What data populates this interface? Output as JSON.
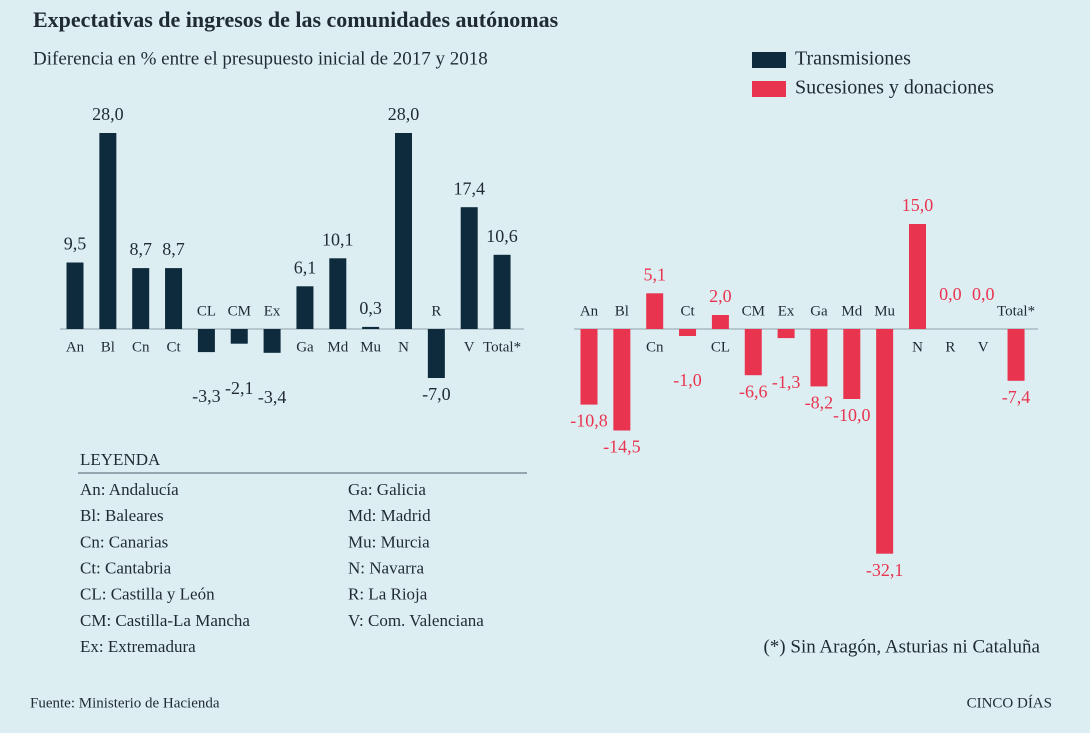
{
  "title": "Expectativas de ingresos de las comunidades autónomas",
  "subtitle": "Diferencia en % entre el presupuesto inicial de 2017 y 2018",
  "chart_data": [
    {
      "type": "bar",
      "categories": [
        "An",
        "Bl",
        "Cn",
        "Ct",
        "CL",
        "CM",
        "Ex",
        "Ga",
        "Md",
        "Mu",
        "N",
        "R",
        "V",
        "Total*"
      ],
      "series": [
        {
          "name": "Transmisiones",
          "color": "#0e2a3d",
          "values": [
            9.5,
            28.0,
            8.7,
            8.7,
            -3.3,
            -2.1,
            -3.4,
            6.1,
            10.1,
            0.3,
            28.0,
            -7.0,
            17.4,
            10.6
          ],
          "value_labels": [
            "9,5",
            "28,0",
            "8,7",
            "8,7",
            "-3,3",
            "-2,1",
            "-3,4",
            "6,1",
            "10,1",
            "0,3",
            "28,0",
            "-7,0",
            "17,4",
            "10,6"
          ]
        }
      ],
      "ylim": [
        -35,
        30
      ]
    },
    {
      "type": "bar",
      "categories": [
        "An",
        "Bl",
        "Cn",
        "Ct",
        "CL",
        "CM",
        "Ex",
        "Ga",
        "Md",
        "Mu",
        "N",
        "R",
        "V",
        "Total*"
      ],
      "series": [
        {
          "name": "Sucesiones y donaciones",
          "color": "#e8344f",
          "values": [
            -10.8,
            -14.5,
            5.1,
            -1.0,
            2.0,
            -6.6,
            -1.3,
            -8.2,
            -10.0,
            -32.1,
            15.0,
            0.0,
            0.0,
            -7.4
          ],
          "value_labels": [
            "-10,8",
            "-14,5",
            "5,1",
            "-1,0",
            "2,0",
            "-6,6",
            "-1,3",
            "-8,2",
            "-10,0",
            "-32,1",
            "15,0",
            "0,0",
            "0,0",
            "-7,4"
          ]
        }
      ],
      "ylim": [
        -35,
        30
      ]
    }
  ],
  "glossary": {
    "heading": "LEYENDA",
    "left": [
      "An: Andalucía",
      "Bl: Baleares",
      "Cn: Canarias",
      "Ct: Cantabria",
      "CL: Castilla y León",
      "CM: Castilla-La Mancha",
      "Ex: Extremadura"
    ],
    "right": [
      "Ga: Galicia",
      "Md: Madrid",
      "Mu: Murcia",
      "N: Navarra",
      "R: La Rioja",
      "V: Com. Valenciana"
    ]
  },
  "note": "(*) Sin Aragón, Asturias ni Cataluña",
  "source": "Fuente: Ministerio de Hacienda",
  "brand": "CINCO DÍAS"
}
